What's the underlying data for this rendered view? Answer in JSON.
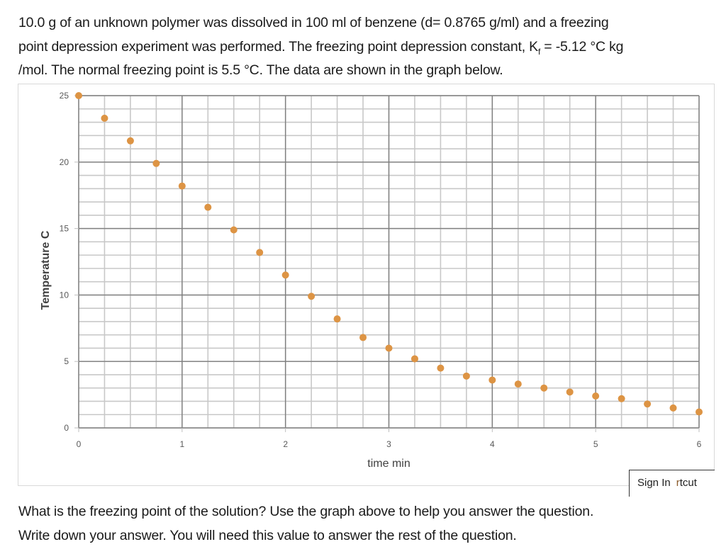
{
  "question": {
    "line1": "10.0 g of an unknown polymer was dissolved in 100 ml of benzene (d= 0.8765 g/ml) and a freezing",
    "line2_pre": "point depression experiment was performed. The freezing point depression constant, K",
    "line2_sub": "f",
    "line2_post": " = -5.12 °C kg",
    "line3": "/mol. The normal freezing point is 5.5 °C. The data are shown in the graph below."
  },
  "popup": {
    "sign_in_label": "Sign In",
    "shortcut_first": "r",
    "shortcut_rest": "tcut"
  },
  "answer_prompt": {
    "line1": "What is the freezing point of the solution?  Use the graph above to help you answer the question.",
    "line2": "Write down your answer.  You will need this value to answer the rest of the question."
  },
  "colors": {
    "marker": "#DD9444",
    "major_grid": "#7f7f7f",
    "minor_grid": "#c8c8c8",
    "tick_label": "#595959"
  },
  "chart_data": {
    "type": "scatter",
    "title": "",
    "xlabel": "time min",
    "ylabel": "Temperature C",
    "xlim": [
      0,
      6
    ],
    "ylim": [
      0,
      25
    ],
    "x_ticks": [
      0,
      1,
      2,
      3,
      4,
      5,
      6
    ],
    "y_ticks": [
      0,
      5,
      10,
      15,
      20,
      25
    ],
    "x_minor_step": 0.25,
    "y_minor_step": 1,
    "grid": true,
    "legend": null,
    "series": [
      {
        "name": "Temperature",
        "x": [
          0,
          0.25,
          0.5,
          0.75,
          1,
          1.25,
          1.5,
          1.75,
          2,
          2.25,
          2.5,
          2.75,
          3,
          3.25,
          3.5,
          3.75,
          4,
          4.25,
          4.5,
          4.75,
          5,
          5.25,
          5.5,
          5.75,
          6
        ],
        "y": [
          25.0,
          23.3,
          21.6,
          19.9,
          18.2,
          16.6,
          14.9,
          13.2,
          11.5,
          9.9,
          8.2,
          6.8,
          6.0,
          5.2,
          4.5,
          3.9,
          3.6,
          3.3,
          3.0,
          2.7,
          2.4,
          2.2,
          1.8,
          1.5,
          1.2
        ]
      }
    ]
  }
}
